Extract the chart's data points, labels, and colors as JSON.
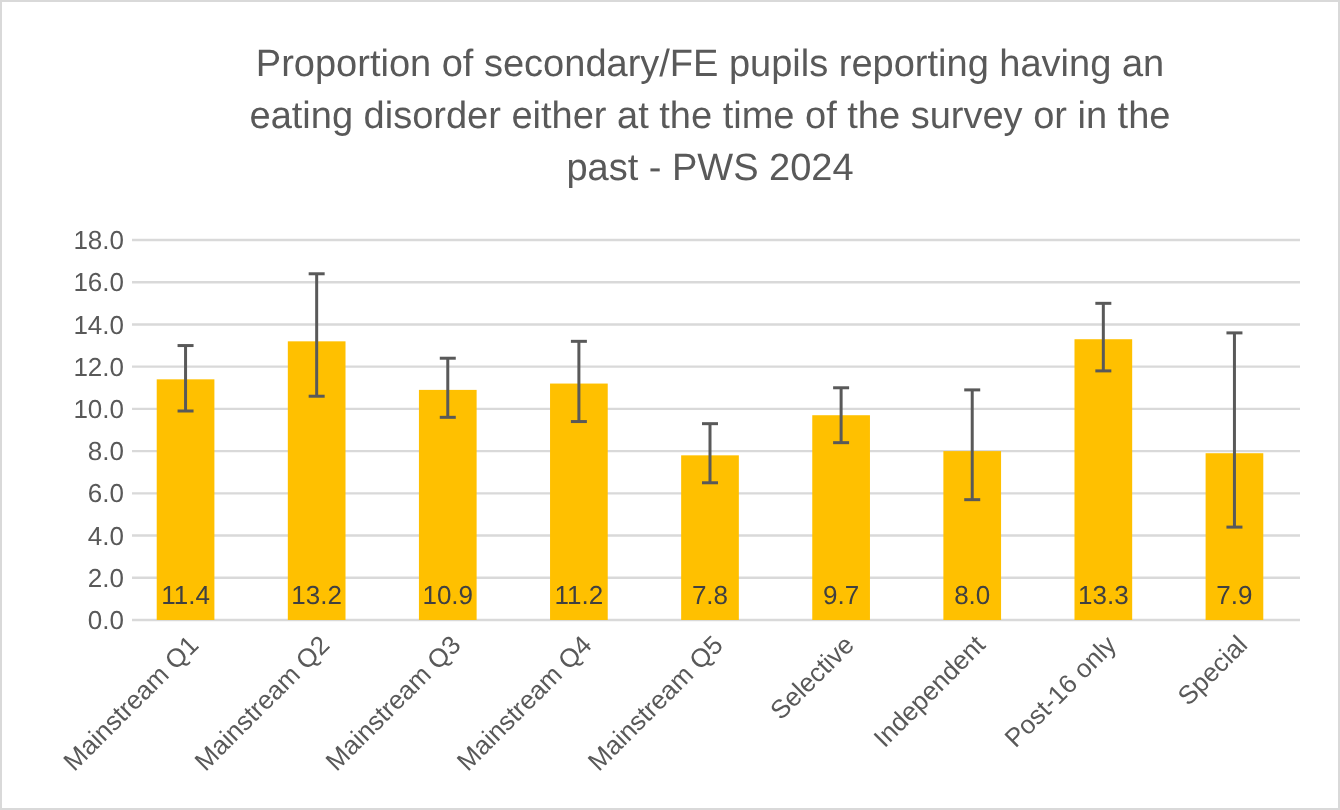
{
  "chart_data": {
    "type": "bar",
    "title": "Proportion of secondary/FE pupils reporting having an eating disorder either at the time of the survey or in the past - PWS 2024",
    "categories": [
      "Mainstream Q1",
      "Mainstream Q2",
      "Mainstream Q3",
      "Mainstream Q4",
      "Mainstream Q5",
      "Selective",
      "Independent",
      "Post-16 only",
      "Special"
    ],
    "values": [
      11.4,
      13.2,
      10.9,
      11.2,
      7.8,
      9.7,
      8.0,
      13.3,
      7.9
    ],
    "errors": [
      [
        9.9,
        13.0
      ],
      [
        10.6,
        16.4
      ],
      [
        9.6,
        12.4
      ],
      [
        9.4,
        13.2
      ],
      [
        6.5,
        9.3
      ],
      [
        8.4,
        11.0
      ],
      [
        5.7,
        10.9
      ],
      [
        11.8,
        15.0
      ],
      [
        4.4,
        13.6
      ]
    ],
    "color": "#ffc000",
    "value_labels": [
      "11.4",
      "13.2",
      "10.9",
      "11.2",
      "7.8",
      "9.7",
      "8.0",
      "13.3",
      "7.9"
    ],
    "grid": "y",
    "ylim": [
      0,
      18
    ],
    "yticks": [
      {
        "value": 0,
        "label": "0.0"
      },
      {
        "value": 2,
        "label": "2.0"
      },
      {
        "value": 4,
        "label": "4.0"
      },
      {
        "value": 6,
        "label": "6.0"
      },
      {
        "value": 8,
        "label": "8.0"
      },
      {
        "value": 10,
        "label": "10.0"
      },
      {
        "value": 12,
        "label": "12.0"
      },
      {
        "value": 14,
        "label": "14.0"
      },
      {
        "value": 16,
        "label": "16.0"
      },
      {
        "value": 18,
        "label": "18.0"
      }
    ]
  }
}
